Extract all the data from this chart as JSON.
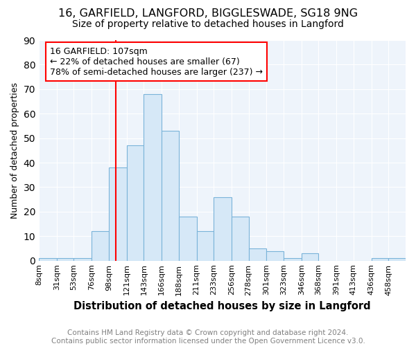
{
  "title1": "16, GARFIELD, LANGFORD, BIGGLESWADE, SG18 9NG",
  "title2": "Size of property relative to detached houses in Langford",
  "xlabel": "Distribution of detached houses by size in Langford",
  "ylabel": "Number of detached properties",
  "bin_edges": [
    8,
    31,
    53,
    76,
    98,
    121,
    143,
    166,
    188,
    211,
    233,
    256,
    278,
    301,
    323,
    346,
    368,
    391,
    413,
    436,
    458
  ],
  "bar_heights": [
    1,
    1,
    1,
    12,
    38,
    47,
    68,
    53,
    18,
    12,
    26,
    18,
    5,
    4,
    1,
    3,
    0,
    0,
    0,
    1,
    1
  ],
  "bar_color": "#d6e8f7",
  "bar_edge_color": "#7ab3d9",
  "red_line_x": 107,
  "annotation_line1": "16 GARFIELD: 107sqm",
  "annotation_line2": "← 22% of detached houses are smaller (67)",
  "annotation_line3": "78% of semi-detached houses are larger (237) →",
  "annotation_box_color": "white",
  "annotation_box_edge_color": "red",
  "footer_text": "Contains HM Land Registry data © Crown copyright and database right 2024.\nContains public sector information licensed under the Open Government Licence v3.0.",
  "ylim": [
    0,
    90
  ],
  "tick_labels": [
    "8sqm",
    "31sqm",
    "53sqm",
    "76sqm",
    "98sqm",
    "121sqm",
    "143sqm",
    "166sqm",
    "188sqm",
    "211sqm",
    "233sqm",
    "256sqm",
    "278sqm",
    "301sqm",
    "323sqm",
    "346sqm",
    "368sqm",
    "391sqm",
    "413sqm",
    "436sqm",
    "458sqm"
  ],
  "title1_fontsize": 11.5,
  "title2_fontsize": 10,
  "xlabel_fontsize": 10.5,
  "ylabel_fontsize": 9,
  "tick_fontsize": 8,
  "footer_fontsize": 7.5,
  "annotation_fontsize": 9,
  "bg_color": "#eef4fb"
}
